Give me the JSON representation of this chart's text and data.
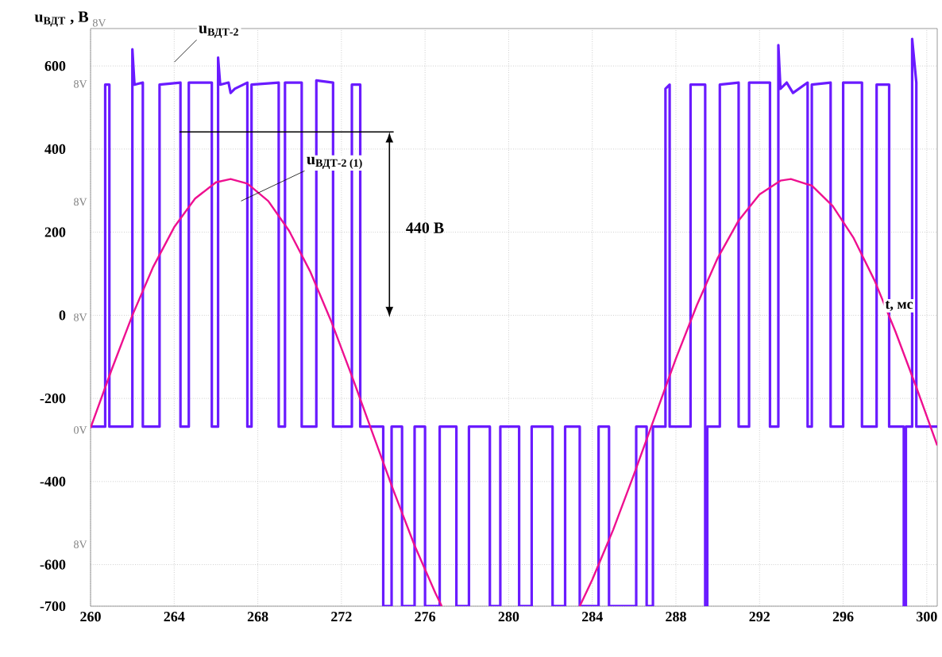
{
  "chart_data": {
    "type": "line",
    "xlabel": "t, мс",
    "ylabel": "u$_{ВДТ}$ , В",
    "xlim": [
      260,
      300.5
    ],
    "ylim": [
      -700,
      690
    ],
    "xticks": [
      260,
      264,
      268,
      272,
      276,
      280,
      284,
      288,
      292,
      296,
      300
    ],
    "yticks": [
      -700,
      -600,
      -400,
      -200,
      0,
      200,
      400,
      600
    ],
    "grid": true,
    "marker": "none",
    "line_style": "solid",
    "series": [
      {
        "color": "#6a1bff",
        "x": [
          260,
          260.7,
          260.7,
          260.9,
          260.9,
          262.0,
          262.0,
          262.1,
          262.5,
          262.5,
          263.3,
          263.3,
          264.3,
          264.3,
          264.7,
          264.7,
          265.8,
          265.8,
          266.1,
          266.1,
          266.2,
          266.6,
          266.7,
          266.9,
          267.5,
          267.5,
          267.7,
          267.7,
          269.0,
          269.0,
          269.3,
          269.3,
          270.1,
          270.1,
          270.8,
          270.8,
          271.6,
          271.6,
          272.5,
          272.5,
          272.9,
          272.9,
          274.0,
          274.0,
          274.4,
          274.4,
          274.9,
          274.9,
          275.5,
          275.5,
          276.0,
          276.0,
          276.7,
          276.7,
          277.5,
          277.5,
          278.1,
          278.1,
          279.1,
          279.1,
          279.6,
          279.6,
          280.5,
          280.5,
          281.1,
          281.1,
          282.1,
          282.1,
          282.7,
          282.7,
          283.4,
          283.4,
          284.3,
          284.3,
          284.8,
          284.8,
          286.1,
          286.1,
          286.6,
          286.6,
          286.9,
          286.9,
          287.5,
          287.5,
          287.7,
          287.7,
          288.7,
          288.7,
          289.4,
          289.4,
          289.5,
          289.5,
          290.1,
          290.1,
          291.0,
          291.0,
          291.5,
          291.5,
          292.5,
          292.5,
          292.9,
          292.9,
          293.0,
          293.3,
          293.6,
          294.3,
          294.3,
          294.5,
          294.5,
          295.4,
          295.4,
          296.0,
          296.0,
          296.9,
          296.9,
          297.6,
          297.6,
          298.2,
          298.2,
          298.9,
          298.9,
          299.0,
          299.0,
          299.3,
          299.3,
          299.5,
          299.5,
          300.5
        ],
        "values": [
          -268,
          -268,
          555,
          555,
          -268,
          -268,
          640,
          555,
          560,
          -268,
          -268,
          555,
          560,
          -268,
          -268,
          560,
          560,
          -268,
          -268,
          620,
          555,
          560,
          535,
          545,
          560,
          -268,
          -268,
          555,
          560,
          -268,
          -268,
          560,
          560,
          -268,
          -268,
          565,
          560,
          -268,
          -268,
          555,
          555,
          -268,
          -268,
          -700,
          -700,
          -268,
          -268,
          -700,
          -700,
          -268,
          -268,
          -700,
          -700,
          -268,
          -268,
          -700,
          -700,
          -268,
          -268,
          -700,
          -700,
          -268,
          -268,
          -700,
          -700,
          -268,
          -268,
          -700,
          -700,
          -268,
          -268,
          -700,
          -700,
          -268,
          -268,
          -700,
          -700,
          -268,
          -268,
          -700,
          -700,
          -268,
          -268,
          545,
          555,
          -268,
          -268,
          555,
          555,
          -700,
          -700,
          -268,
          -268,
          555,
          560,
          -268,
          -268,
          560,
          560,
          -268,
          -268,
          650,
          545,
          560,
          535,
          560,
          -268,
          -268,
          555,
          560,
          -268,
          -268,
          560,
          560,
          -268,
          -268,
          555,
          555,
          -268,
          -268,
          -700,
          -700,
          -268,
          -268,
          665,
          560,
          -268,
          -268
        ]
      },
      {
        "color": "#ee1090",
        "x": [
          260,
          261,
          262,
          263,
          264,
          265,
          266,
          266.7,
          267.5,
          268.5,
          269.5,
          270.5,
          271.5,
          272.5,
          273.5,
          274.5,
          275.5,
          276.5,
          276.8,
          280,
          283.4,
          284,
          285,
          286,
          287,
          288,
          289,
          290,
          291,
          292,
          293,
          293.5,
          294.5,
          295.5,
          296.5,
          297.5,
          298.5,
          299.5,
          300.5
        ],
        "values": [
          -271,
          -132,
          0,
          117,
          212,
          281,
          320,
          328,
          317,
          275,
          203,
          106,
          -13,
          -146,
          -285,
          -423,
          -554,
          -669,
          -700,
          null,
          -700,
          -636,
          -516,
          -382,
          -243,
          -104,
          24,
          138,
          228,
          291,
          324,
          328,
          312,
          263,
          186,
          84,
          -39,
          -173,
          -313
        ]
      }
    ],
    "annotations": [
      "u$_{ВДТ-2}$",
      {
        "text": "u$_{ВДТ-2 (1)}$",
        "x": 267.2,
        "y": 275
      },
      "440 В",
      "8V",
      "8V",
      "8V",
      "8V",
      "0V",
      "8V"
    ]
  }
}
